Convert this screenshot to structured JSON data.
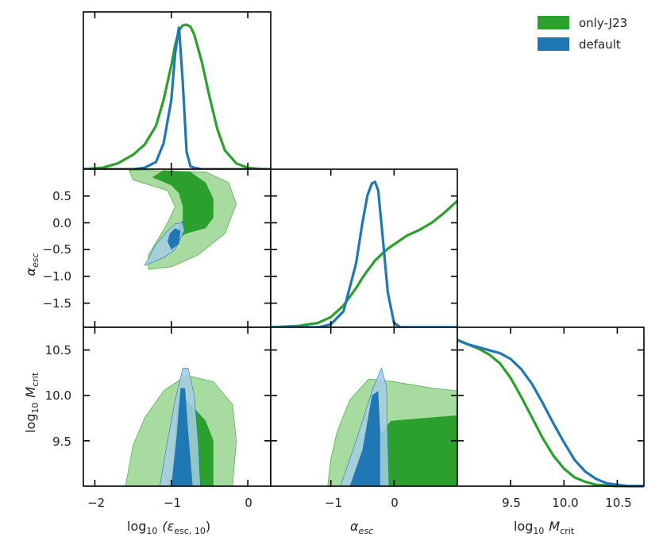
{
  "colors": {
    "only_j23": "#2ca02c",
    "default": "#1f77b4",
    "only_j23_light": "#a8dba0",
    "default_light": "#a6cce4"
  },
  "legend": [
    {
      "label": "only-J23",
      "color": "#2ca02c"
    },
    {
      "label": "default",
      "color": "#1f77b4"
    }
  ],
  "axes_labels": {
    "x_eps": "log₁₀ (εesc,10)",
    "x_eps_base": "log",
    "x_eps_sub": "10",
    "x_eps_var": "(ε",
    "x_eps_var_sub": "esc, 10",
    "x_eps_close": ")",
    "x_alpha": "α",
    "x_alpha_sub": "esc",
    "x_mcrit_base": "log",
    "x_mcrit_sub": "10",
    "x_mcrit_var": "M",
    "x_mcrit_var_sub": "crit",
    "y_alpha": "α",
    "y_alpha_sub": "esc",
    "y_mcrit_base": "log",
    "y_mcrit_sub": "10",
    "y_mcrit_var": "M",
    "y_mcrit_var_sub": "crit"
  },
  "chart_data": {
    "type": "corner",
    "parameters": [
      "log10 eps_esc,10",
      "alpha_esc",
      "log10 M_crit"
    ],
    "ranges": {
      "eps": [
        -2.15,
        0.3
      ],
      "alpha": [
        -1.95,
        1.0
      ],
      "mcrit": [
        9.0,
        10.75
      ]
    },
    "ticks": {
      "eps": [
        "−2",
        "−1",
        "0"
      ],
      "eps_values": [
        -2,
        -1,
        0
      ],
      "alpha_y": [
        "0.5",
        "0.0",
        "−0.5",
        "−1.0",
        "−1.5"
      ],
      "alpha_y_values": [
        0.5,
        0.0,
        -0.5,
        -1.0,
        -1.5
      ],
      "alpha_x": [
        "−1",
        "0"
      ],
      "alpha_x_values": [
        -1,
        0
      ],
      "mcrit": [
        "9.5",
        "10.0",
        "10.5"
      ],
      "mcrit_values": [
        9.5,
        10.0,
        10.5
      ]
    },
    "marginals": {
      "eps": {
        "x": [
          -2.15,
          -1.9,
          -1.7,
          -1.5,
          -1.35,
          -1.2,
          -1.1,
          -1.0,
          -0.95,
          -0.9,
          -0.85,
          -0.8,
          -0.75,
          -0.7,
          -0.6,
          -0.5,
          -0.4,
          -0.3,
          -0.15,
          0.0,
          0.2,
          0.3
        ],
        "only_j23": [
          0.0,
          0.01,
          0.04,
          0.1,
          0.17,
          0.3,
          0.48,
          0.72,
          0.86,
          0.96,
          0.995,
          1.0,
          0.985,
          0.93,
          0.74,
          0.5,
          0.28,
          0.13,
          0.04,
          0.01,
          0.0,
          0.0
        ],
        "default": [
          0.0,
          0.0,
          0.0,
          0.0,
          0.01,
          0.05,
          0.18,
          0.48,
          0.8,
          0.985,
          0.6,
          0.12,
          0.02,
          0.01,
          0.0,
          0.0,
          0.0,
          0.0,
          0.0,
          0.0,
          0.0,
          0.0
        ]
      },
      "alpha": {
        "x": [
          -1.95,
          -1.5,
          -1.2,
          -1.0,
          -0.8,
          -0.6,
          -0.5,
          -0.42,
          -0.35,
          -0.3,
          -0.25,
          -0.18,
          -0.1,
          0.0,
          0.1,
          0.2,
          0.4,
          0.6,
          0.8,
          1.0
        ],
        "only_j23": [
          0.0,
          0.01,
          0.03,
          0.07,
          0.15,
          0.27,
          0.34,
          0.39,
          0.43,
          0.46,
          0.48,
          0.51,
          0.54,
          0.57,
          0.6,
          0.63,
          0.67,
          0.72,
          0.79,
          0.87
        ],
        "default": [
          0.0,
          0.0,
          0.0,
          0.02,
          0.11,
          0.44,
          0.72,
          0.91,
          0.99,
          1.0,
          0.94,
          0.62,
          0.24,
          0.03,
          0.0,
          0.0,
          0.0,
          0.0,
          0.0,
          0.0
        ]
      },
      "mcrit": {
        "x": [
          9.0,
          9.1,
          9.2,
          9.3,
          9.4,
          9.5,
          9.6,
          9.7,
          9.8,
          9.9,
          10.0,
          10.1,
          10.2,
          10.3,
          10.4,
          10.5,
          10.6,
          10.75
        ],
        "only_j23": [
          1.0,
          0.97,
          0.94,
          0.9,
          0.84,
          0.74,
          0.61,
          0.47,
          0.33,
          0.21,
          0.12,
          0.06,
          0.03,
          0.01,
          0.005,
          0.0,
          0.0,
          0.0
        ],
        "default": [
          1.0,
          0.97,
          0.95,
          0.93,
          0.91,
          0.87,
          0.8,
          0.7,
          0.57,
          0.43,
          0.3,
          0.18,
          0.1,
          0.05,
          0.02,
          0.01,
          0.0,
          0.0
        ]
      }
    },
    "contours": {
      "eps_alpha": {
        "only_j23_outer": [
          [
            -1.3,
            -0.87
          ],
          [
            -1.0,
            -0.82
          ],
          [
            -0.65,
            -0.6
          ],
          [
            -0.3,
            -0.2
          ],
          [
            -0.15,
            0.35
          ],
          [
            -0.25,
            0.75
          ],
          [
            -0.55,
            0.95
          ],
          [
            -1.55,
            0.98
          ],
          [
            -1.5,
            0.8
          ],
          [
            -1.05,
            0.6
          ],
          [
            -0.95,
            0.3
          ],
          [
            -1.05,
            0.0
          ],
          [
            -1.15,
            -0.25
          ],
          [
            -1.3,
            -0.6
          ]
        ],
        "only_j23_inner": [
          [
            -1.0,
            -0.35
          ],
          [
            -0.8,
            -0.2
          ],
          [
            -0.55,
            -0.1
          ],
          [
            -0.45,
            0.1
          ],
          [
            -0.45,
            0.45
          ],
          [
            -0.55,
            0.75
          ],
          [
            -0.75,
            0.95
          ],
          [
            -1.1,
            0.98
          ],
          [
            -1.25,
            0.85
          ],
          [
            -1.0,
            0.7
          ],
          [
            -0.9,
            0.55
          ],
          [
            -0.85,
            0.3
          ],
          [
            -0.85,
            0.05
          ],
          [
            -0.95,
            -0.2
          ]
        ],
        "default_outer": [
          [
            -1.35,
            -0.8
          ],
          [
            -1.1,
            -0.65
          ],
          [
            -0.95,
            -0.5
          ],
          [
            -0.83,
            -0.15
          ],
          [
            -0.85,
            0.0
          ],
          [
            -0.95,
            -0.02
          ],
          [
            -1.05,
            -0.15
          ],
          [
            -1.2,
            -0.4
          ]
        ],
        "default_inner": [
          [
            -1.0,
            -0.5
          ],
          [
            -0.9,
            -0.4
          ],
          [
            -0.88,
            -0.15
          ],
          [
            -0.95,
            -0.1
          ],
          [
            -1.02,
            -0.2
          ],
          [
            -1.05,
            -0.35
          ]
        ]
      },
      "eps_mcrit": {
        "only_j23_outer": [
          [
            -1.6,
            9.0
          ],
          [
            -0.2,
            9.0
          ],
          [
            -0.15,
            9.5
          ],
          [
            -0.2,
            9.9
          ],
          [
            -0.45,
            10.15
          ],
          [
            -0.8,
            10.22
          ],
          [
            -1.1,
            10.05
          ],
          [
            -1.35,
            9.75
          ],
          [
            -1.5,
            9.45
          ]
        ],
        "only_j23_inner": [
          [
            -1.0,
            9.0
          ],
          [
            -0.45,
            9.0
          ],
          [
            -0.45,
            9.5
          ],
          [
            -0.55,
            9.72
          ],
          [
            -0.8,
            9.95
          ],
          [
            -0.92,
            9.9
          ]
        ],
        "default_outer": [
          [
            -1.15,
            9.0
          ],
          [
            -0.62,
            9.0
          ],
          [
            -0.65,
            9.5
          ],
          [
            -0.7,
            10.0
          ],
          [
            -0.78,
            10.3
          ],
          [
            -0.85,
            10.3
          ],
          [
            -0.95,
            9.95
          ],
          [
            -1.05,
            9.5
          ]
        ],
        "default_inner": [
          [
            -1.0,
            9.0
          ],
          [
            -0.72,
            9.0
          ],
          [
            -0.78,
            9.6
          ],
          [
            -0.82,
            10.08
          ],
          [
            -0.88,
            10.08
          ],
          [
            -0.93,
            9.55
          ]
        ]
      },
      "alpha_mcrit": {
        "only_j23_outer": [
          [
            -1.05,
            9.0
          ],
          [
            1.0,
            9.0
          ],
          [
            1.0,
            10.05
          ],
          [
            0.6,
            10.08
          ],
          [
            0.0,
            10.15
          ],
          [
            -0.4,
            10.18
          ],
          [
            -0.7,
            9.95
          ],
          [
            -0.9,
            9.6
          ],
          [
            -1.0,
            9.3
          ]
        ],
        "only_j23_inner": [
          [
            -0.62,
            9.0
          ],
          [
            1.0,
            9.0
          ],
          [
            1.0,
            9.78
          ],
          [
            -0.05,
            9.72
          ],
          [
            -0.3,
            9.5
          ],
          [
            -0.5,
            9.2
          ]
        ],
        "default_outer": [
          [
            -0.85,
            9.0
          ],
          [
            -0.08,
            9.0
          ],
          [
            -0.1,
            9.5
          ],
          [
            -0.12,
            10.1
          ],
          [
            -0.2,
            10.3
          ],
          [
            -0.35,
            10.05
          ],
          [
            -0.6,
            9.5
          ],
          [
            -0.75,
            9.2
          ]
        ],
        "default_inner": [
          [
            -0.7,
            9.0
          ],
          [
            -0.22,
            9.0
          ],
          [
            -0.22,
            9.6
          ],
          [
            -0.25,
            10.05
          ],
          [
            -0.35,
            10.0
          ],
          [
            -0.5,
            9.4
          ]
        ]
      }
    }
  }
}
